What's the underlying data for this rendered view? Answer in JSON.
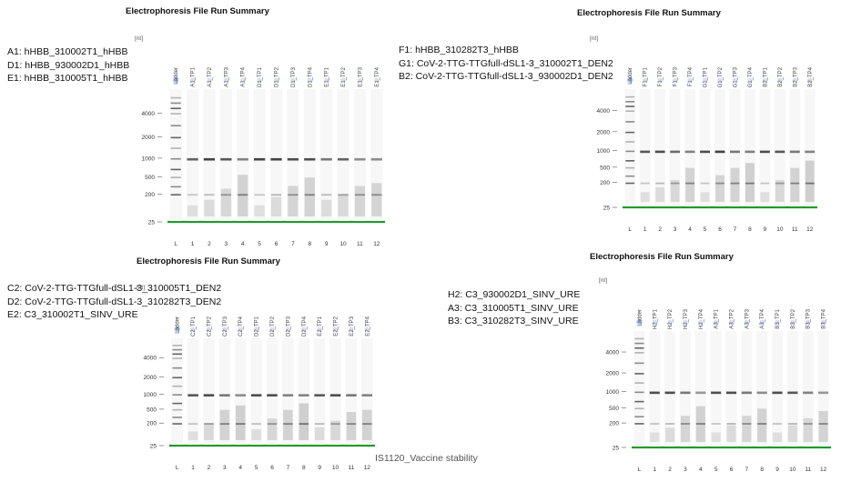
{
  "footer_note": "IS1120_Vaccine stability",
  "panels": [
    {
      "title": "Electrophoresis File Run Summary",
      "unit": "[nt]",
      "ladder_label": "Ladder",
      "legend": [
        "A1: hHBB_310002T1_hHBB",
        "D1: hHBB_930002D1_hHBB",
        "E1: hHBB_310005T1_hHBB"
      ],
      "lane_labels": [
        "A1_TP1",
        "A1_TP2",
        "A1_TP3",
        "A1_TP4",
        "D1_TP1",
        "D1_TP2",
        "D1_TP3",
        "D1_TP4",
        "E1_TP1",
        "E1_TP2",
        "E1_TP3",
        "E1_TP4"
      ],
      "lane_numbers": [
        "L",
        "1",
        "2",
        "3",
        "4",
        "5",
        "6",
        "7",
        "8",
        "9",
        "10",
        "11",
        "12"
      ],
      "y_ticks": [
        "4000",
        "2000",
        "1000",
        "500",
        "200",
        "25"
      ],
      "main_band": [
        0.7,
        0.85,
        0.75,
        0.55,
        0.85,
        0.85,
        0.8,
        0.8,
        0.6,
        0.7,
        0.5,
        0.5
      ],
      "smear": [
        0.2,
        0.3,
        0.5,
        0.75,
        0.2,
        0.35,
        0.55,
        0.7,
        0.3,
        0.4,
        0.55,
        0.6
      ]
    },
    {
      "title": "Electrophoresis File Run Summary",
      "unit": "[nt]",
      "ladder_label": "Ladder",
      "legend": [
        "F1: hHBB_310282T3_hHBB",
        "G1: CoV-2-TTG-TTGfull-dSL1-3_310002T1_DEN2",
        "B2: CoV-2-TTG-TTGfull-dSL1-3_930002D1_DEN2"
      ],
      "lane_labels": [
        "F1_TP1",
        "F1_TP2",
        "F1_TP3",
        "F1_TP4",
        "G1_TP1",
        "G1_TP2",
        "G1_TP3",
        "G1_TP4",
        "B2_TP1",
        "B2_TP2",
        "B2_TP3",
        "B2_TP4"
      ],
      "lane_numbers": [
        "L",
        "1",
        "2",
        "3",
        "4",
        "5",
        "6",
        "7",
        "8",
        "9",
        "10",
        "11",
        "12"
      ],
      "y_ticks": [
        "4000",
        "2000",
        "1000",
        "500",
        "200",
        "25"
      ],
      "main_band": [
        0.75,
        0.8,
        0.65,
        0.55,
        0.8,
        0.85,
        0.6,
        0.55,
        0.8,
        0.75,
        0.6,
        0.55
      ],
      "smear": [
        0.2,
        0.3,
        0.45,
        0.7,
        0.2,
        0.55,
        0.7,
        0.8,
        0.2,
        0.45,
        0.7,
        0.85
      ]
    },
    {
      "title": "Electrophoresis File Run Summary",
      "unit": "[nt]",
      "ladder_label": "Ladder",
      "legend": [
        "C2: CoV-2-TTG-TTGfull-dSL1-3_310005T1_DEN2",
        "D2:  CoV-2-TTG-TTGfull-dSL1-3_310282T3_DEN2",
        "E2:  C3_310002T1_SINV_URE"
      ],
      "lane_labels": [
        "C2_TP1",
        "C2_TP2",
        "C2_TP3",
        "C2_TP4",
        "D2_TP1",
        "D2_TP2",
        "D2_TP3",
        "D2_TP4",
        "E2_TP1",
        "E2_TP2",
        "E2_TP3",
        "E2_TP4"
      ],
      "lane_numbers": [
        "L",
        "1",
        "2",
        "3",
        "4",
        "5",
        "6",
        "7",
        "8",
        "9",
        "10",
        "11",
        "12"
      ],
      "y_ticks": [
        "4000",
        "2000",
        "1000",
        "500",
        "200",
        "25"
      ],
      "main_band": [
        0.75,
        0.8,
        0.6,
        0.5,
        0.8,
        0.8,
        0.55,
        0.55,
        0.75,
        0.8,
        0.6,
        0.55
      ],
      "smear": [
        0.2,
        0.4,
        0.7,
        0.8,
        0.25,
        0.5,
        0.7,
        0.85,
        0.3,
        0.45,
        0.65,
        0.7
      ]
    },
    {
      "title": "Electrophoresis File Run Summary",
      "unit": "[nt]",
      "ladder_label": "Ladder",
      "legend": [
        "H2: C3_930002D1_SINV_URE",
        "A3:  C3_310005T1_SINV_URE",
        "B3:  C3_310282T3_SINV_URE"
      ],
      "lane_labels": [
        "H2_TP1",
        "H2_TP2",
        "H2_TP3",
        "H2_TP4",
        "A3_TP1",
        "A3_TP2",
        "A3_TP3",
        "A3_TP4",
        "B3_TP1",
        "B3_TP2",
        "B3_TP3",
        "B3_TP4"
      ],
      "lane_numbers": [
        "L",
        "1",
        "2",
        "3",
        "4",
        "5",
        "6",
        "7",
        "8",
        "9",
        "10",
        "11",
        "12"
      ],
      "y_ticks": [
        "4000",
        "2000",
        "1000",
        "500",
        "200",
        "25"
      ],
      "main_band": [
        0.8,
        0.8,
        0.6,
        0.45,
        0.8,
        0.8,
        0.6,
        0.5,
        0.8,
        0.75,
        0.55,
        0.45
      ],
      "smear": [
        0.2,
        0.3,
        0.55,
        0.75,
        0.2,
        0.35,
        0.55,
        0.7,
        0.2,
        0.35,
        0.5,
        0.65
      ]
    }
  ],
  "colors": {
    "green_line": "#1f9a2a",
    "well_dot": "#a9c1f2",
    "band": "#222222",
    "gel_bg": "#f7f7f7"
  }
}
